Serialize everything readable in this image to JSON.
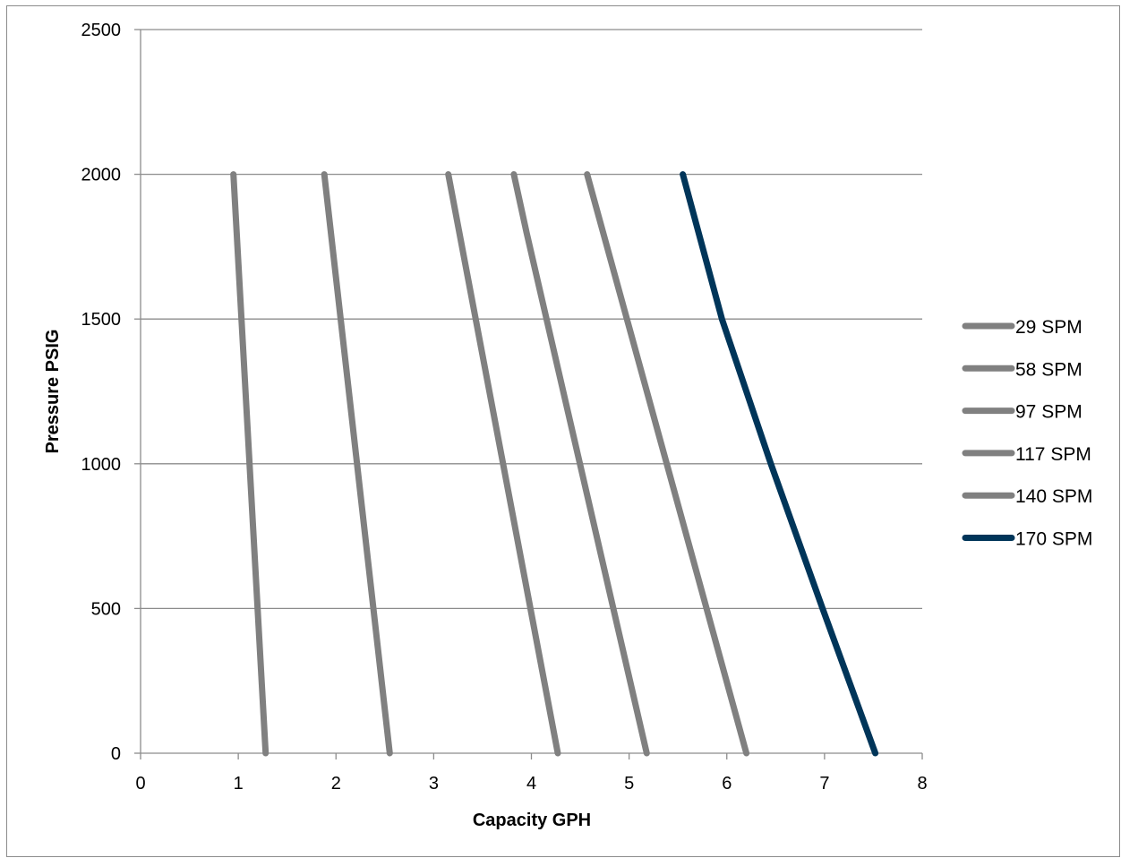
{
  "chart_data": {
    "type": "line",
    "title": "",
    "xlabel": "Capacity GPH",
    "ylabel": "Pressure PSIG",
    "xlim": [
      0,
      8
    ],
    "ylim": [
      0,
      2500
    ],
    "x_ticks": [
      "0",
      "1",
      "2",
      "3",
      "4",
      "5",
      "6",
      "7",
      "8"
    ],
    "y_ticks": [
      "0",
      "500",
      "1000",
      "1500",
      "2000",
      "2500"
    ],
    "grid": "horizontal",
    "legend_position": "right",
    "series": [
      {
        "name": "29 SPM",
        "color": "#808080",
        "points": [
          [
            0.95,
            2000
          ],
          [
            1.28,
            0
          ]
        ]
      },
      {
        "name": "58 SPM",
        "color": "#808080",
        "points": [
          [
            1.88,
            2000
          ],
          [
            2.55,
            0
          ]
        ]
      },
      {
        "name": "97 SPM",
        "color": "#808080",
        "points": [
          [
            3.15,
            2000
          ],
          [
            4.27,
            0
          ]
        ]
      },
      {
        "name": "117 SPM",
        "color": "#808080",
        "points": [
          [
            3.82,
            2000
          ],
          [
            3.95,
            1800
          ],
          [
            5.18,
            0
          ]
        ]
      },
      {
        "name": "140 SPM",
        "color": "#808080",
        "points": [
          [
            4.57,
            2000
          ],
          [
            6.2,
            0
          ]
        ]
      },
      {
        "name": "170 SPM",
        "color": "#003559",
        "points": [
          [
            5.55,
            2000
          ],
          [
            5.95,
            1500
          ],
          [
            6.45,
            1000
          ],
          [
            6.98,
            500
          ],
          [
            7.52,
            0
          ]
        ]
      }
    ]
  }
}
